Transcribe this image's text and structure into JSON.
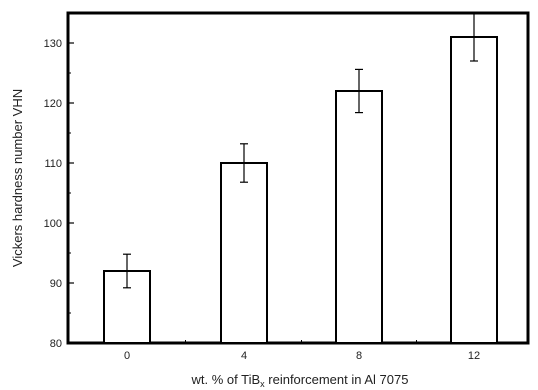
{
  "chart_data": {
    "type": "bar",
    "categories": [
      "0",
      "4",
      "8",
      "12"
    ],
    "values": [
      92,
      110,
      122,
      131
    ],
    "error": [
      2.8,
      3.2,
      3.6,
      4.0
    ],
    "xlabel_main": "wt. % of TiB",
    "xlabel_sub": "x",
    "xlabel_rest": " reinforcement in Al 7075",
    "ylabel": "Vickers hardness number VHN",
    "ylim": [
      80,
      135
    ],
    "yticks": [
      80,
      90,
      100,
      110,
      120,
      130
    ],
    "grid": false,
    "bar_fill": "#ffffff",
    "bar_stroke": "#000000"
  }
}
